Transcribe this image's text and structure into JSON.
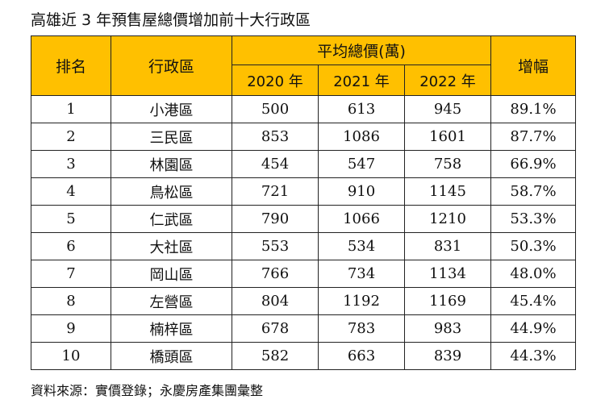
{
  "title": "高雄近 3 年預售屋總價增加前十大行政區",
  "source": "資料來源：實價登錄；永慶房產集團彙整",
  "table": {
    "headers": {
      "rank": "排名",
      "district": "行政區",
      "avg_price": "平均總價(萬)",
      "y2020": "2020 年",
      "y2021": "2021 年",
      "y2022": "2022 年",
      "increase": "增幅"
    },
    "rows": [
      {
        "rank": "1",
        "district": "小港區",
        "y2020": "500",
        "y2021": "613",
        "y2022": "945",
        "increase": "89.1%"
      },
      {
        "rank": "2",
        "district": "三民區",
        "y2020": "853",
        "y2021": "1086",
        "y2022": "1601",
        "increase": "87.7%"
      },
      {
        "rank": "3",
        "district": "林園區",
        "y2020": "454",
        "y2021": "547",
        "y2022": "758",
        "increase": "66.9%"
      },
      {
        "rank": "4",
        "district": "鳥松區",
        "y2020": "721",
        "y2021": "910",
        "y2022": "1145",
        "increase": "58.7%"
      },
      {
        "rank": "5",
        "district": "仁武區",
        "y2020": "790",
        "y2021": "1066",
        "y2022": "1210",
        "increase": "53.3%"
      },
      {
        "rank": "6",
        "district": "大社區",
        "y2020": "553",
        "y2021": "534",
        "y2022": "831",
        "increase": "50.3%"
      },
      {
        "rank": "7",
        "district": "岡山區",
        "y2020": "766",
        "y2021": "734",
        "y2022": "1134",
        "increase": "48.0%"
      },
      {
        "rank": "8",
        "district": "左營區",
        "y2020": "804",
        "y2021": "1192",
        "y2022": "1169",
        "increase": "45.4%"
      },
      {
        "rank": "9",
        "district": "楠梓區",
        "y2020": "678",
        "y2021": "783",
        "y2022": "983",
        "increase": "44.9%"
      },
      {
        "rank": "10",
        "district": "橋頭區",
        "y2020": "582",
        "y2021": "663",
        "y2022": "839",
        "increase": "44.3%"
      }
    ]
  },
  "colors": {
    "header_bg": "#ffc000",
    "border": "#222222"
  }
}
